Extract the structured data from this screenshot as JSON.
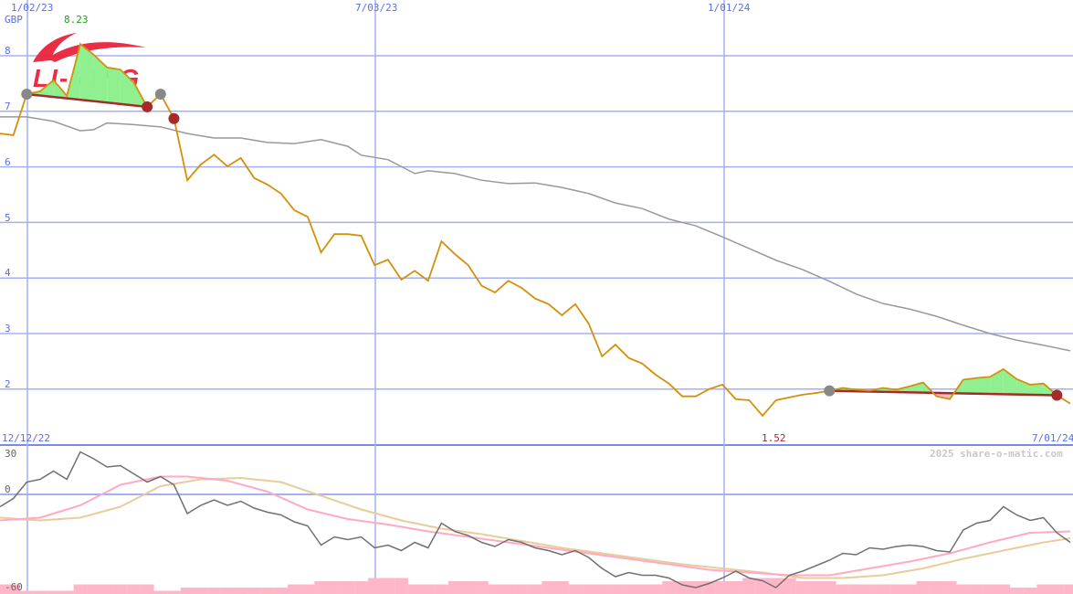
{
  "chart_data": [
    {
      "type": "line",
      "panel": "price",
      "unit_label": "GBP",
      "interval": "weekly",
      "x_tick_labels": [
        "1/02/23",
        "7/03/23",
        "1/01/24"
      ],
      "x_range_labels": [
        "12/12/22",
        "7/01/24"
      ],
      "y_ticks": [
        2,
        3,
        4,
        5,
        6,
        7,
        8
      ],
      "ylim": [
        1.52,
        8.23
      ],
      "max_label": "8.23",
      "min_label": "1.52",
      "grid": true,
      "series": [
        {
          "role": "price",
          "color": "#d4900a",
          "values": [
            6.6,
            6.57,
            7.31,
            7.36,
            7.56,
            7.28,
            8.21,
            8.02,
            7.79,
            7.75,
            7.52,
            7.08,
            7.31,
            6.87,
            5.76,
            6.04,
            6.22,
            6.01,
            6.16,
            5.8,
            5.68,
            5.52,
            5.22,
            5.1,
            4.46,
            4.79,
            4.79,
            4.76,
            4.23,
            4.33,
            3.97,
            4.13,
            3.95,
            4.66,
            4.43,
            4.23,
            3.86,
            3.74,
            3.95,
            3.82,
            3.63,
            3.53,
            3.33,
            3.53,
            3.18,
            2.59,
            2.8,
            2.56,
            2.46,
            2.26,
            2.1,
            1.87,
            1.87,
            2.0,
            2.08,
            1.82,
            1.8,
            1.52,
            1.8,
            1.85,
            1.9,
            1.93,
            1.97,
            2.02,
            1.99,
            1.97,
            2.02,
            1.99,
            2.05,
            2.12,
            1.87,
            1.82,
            2.17,
            2.2,
            2.22,
            2.36,
            2.18,
            2.08,
            2.1,
            1.89,
            1.74
          ]
        },
        {
          "role": "moving-average",
          "color": "#999999",
          "points": [
            [
              0,
              6.9
            ],
            [
              2,
              6.9
            ],
            [
              4,
              6.82
            ],
            [
              6,
              6.65
            ],
            [
              7,
              6.67
            ],
            [
              8,
              6.79
            ],
            [
              10,
              6.76
            ],
            [
              12,
              6.72
            ],
            [
              14,
              6.6
            ],
            [
              16,
              6.52
            ],
            [
              18,
              6.52
            ],
            [
              20,
              6.44
            ],
            [
              22,
              6.42
            ],
            [
              24,
              6.49
            ],
            [
              26,
              6.37
            ],
            [
              27,
              6.21
            ],
            [
              29,
              6.13
            ],
            [
              31,
              5.88
            ],
            [
              32,
              5.93
            ],
            [
              34,
              5.88
            ],
            [
              36,
              5.76
            ],
            [
              38,
              5.7
            ],
            [
              40,
              5.71
            ],
            [
              42,
              5.63
            ],
            [
              44,
              5.52
            ],
            [
              46,
              5.35
            ],
            [
              48,
              5.25
            ],
            [
              50,
              5.06
            ],
            [
              52,
              4.94
            ],
            [
              54,
              4.74
            ],
            [
              56,
              4.53
            ],
            [
              58,
              4.32
            ],
            [
              60,
              4.15
            ],
            [
              62,
              3.94
            ],
            [
              64,
              3.71
            ],
            [
              66,
              3.54
            ],
            [
              68,
              3.44
            ],
            [
              70,
              3.31
            ],
            [
              72,
              3.15
            ],
            [
              74,
              3.0
            ],
            [
              76,
              2.88
            ],
            [
              78,
              2.79
            ],
            [
              80,
              2.69
            ]
          ]
        }
      ],
      "trendlines": [
        {
          "from": [
            2,
            7.31
          ],
          "to": [
            11,
            7.08
          ],
          "color": "#a52a2a"
        },
        {
          "from": [
            62,
            1.97
          ],
          "to": [
            79,
            1.89
          ],
          "color": "#a52a2a"
        }
      ],
      "markers": [
        {
          "week": 2,
          "value": 7.31,
          "kind": "start",
          "color": "#888888"
        },
        {
          "week": 11,
          "value": 7.08,
          "kind": "end",
          "color": "#a52a2a"
        },
        {
          "week": 12,
          "value": 7.31,
          "kind": "start",
          "color": "#888888"
        },
        {
          "week": 13,
          "value": 6.87,
          "kind": "end",
          "color": "#a52a2a"
        },
        {
          "week": 62,
          "value": 1.97,
          "kind": "start",
          "color": "#888888"
        },
        {
          "week": 79,
          "value": 1.89,
          "kind": "end",
          "color": "#a52a2a"
        }
      ],
      "fill_colors": {
        "above": "#90f090",
        "below": "#ffb6c8"
      }
    },
    {
      "type": "line",
      "panel": "oscillator",
      "y_ticks": [
        30,
        0,
        -60
      ],
      "ylim": [
        -68,
        31
      ],
      "series": [
        {
          "role": "oscillator",
          "color": "#707070",
          "values": [
            -9,
            -3,
            9,
            11,
            17,
            11,
            31,
            26,
            20,
            21,
            15,
            9,
            13,
            7,
            -14,
            -8,
            -4,
            -8,
            -5,
            -10,
            -13,
            -15,
            -20,
            -23,
            -37,
            -31,
            -33,
            -31,
            -39,
            -37,
            -41,
            -35,
            -39,
            -21,
            -27,
            -30,
            -35,
            -38,
            -33,
            -35,
            -39,
            -41,
            -44,
            -41,
            -46,
            -54,
            -60,
            -57,
            -59,
            -59,
            -61,
            -66,
            -68,
            -65,
            -61,
            -56,
            -61,
            -63,
            -68,
            -59,
            -56,
            -52,
            -48,
            -43,
            -44,
            -39,
            -40,
            -38,
            -37,
            -38,
            -41,
            -42,
            -26,
            -21,
            -19,
            -9,
            -15,
            -19,
            -17,
            -28,
            -35
          ]
        },
        {
          "role": "signal-fast",
          "color": "#ffaac0",
          "points": [
            [
              0,
              -19
            ],
            [
              3,
              -17
            ],
            [
              6,
              -8
            ],
            [
              9,
              7
            ],
            [
              12,
              13
            ],
            [
              14,
              13
            ],
            [
              17,
              10
            ],
            [
              20,
              2
            ],
            [
              23,
              -11
            ],
            [
              26,
              -18
            ],
            [
              29,
              -22
            ],
            [
              32,
              -27
            ],
            [
              35,
              -31
            ],
            [
              38,
              -35
            ],
            [
              41,
              -39
            ],
            [
              44,
              -43
            ],
            [
              47,
              -47
            ],
            [
              50,
              -51
            ],
            [
              53,
              -55
            ],
            [
              56,
              -57
            ],
            [
              59,
              -59
            ],
            [
              62,
              -59
            ],
            [
              65,
              -54
            ],
            [
              68,
              -49
            ],
            [
              71,
              -43
            ],
            [
              74,
              -35
            ],
            [
              77,
              -28
            ],
            [
              80,
              -27
            ]
          ]
        },
        {
          "role": "signal-slow",
          "color": "#e8cc9c",
          "points": [
            [
              0,
              -17
            ],
            [
              3,
              -19
            ],
            [
              6,
              -17
            ],
            [
              9,
              -9
            ],
            [
              12,
              6
            ],
            [
              15,
              11
            ],
            [
              18,
              12
            ],
            [
              21,
              9
            ],
            [
              24,
              -1
            ],
            [
              27,
              -11
            ],
            [
              30,
              -19
            ],
            [
              33,
              -25
            ],
            [
              36,
              -29
            ],
            [
              39,
              -34
            ],
            [
              42,
              -39
            ],
            [
              45,
              -43
            ],
            [
              48,
              -47
            ],
            [
              51,
              -51
            ],
            [
              54,
              -54
            ],
            [
              57,
              -57
            ],
            [
              60,
              -61
            ],
            [
              63,
              -61
            ],
            [
              66,
              -59
            ],
            [
              69,
              -54
            ],
            [
              72,
              -47
            ],
            [
              75,
              -41
            ],
            [
              78,
              -35
            ],
            [
              80,
              -32
            ]
          ]
        }
      ],
      "volume_relative": [
        3,
        3,
        1,
        1,
        1,
        1,
        3,
        3,
        3,
        3,
        3,
        3,
        1,
        1,
        2,
        2,
        2,
        2,
        2,
        2,
        2,
        2,
        3,
        3,
        4,
        4,
        4,
        4,
        5,
        5,
        5,
        3,
        3,
        3,
        4,
        4,
        4,
        3,
        3,
        3,
        3,
        4,
        4,
        3,
        3,
        3,
        3,
        3,
        3,
        3,
        4,
        4,
        4,
        4,
        4,
        4,
        5,
        5,
        5,
        5,
        4,
        4,
        4,
        3,
        3,
        3,
        3,
        3,
        3,
        4,
        4,
        4,
        3,
        3,
        3,
        3,
        2,
        2,
        3,
        3,
        3
      ],
      "volume_color": "#ffb6c8"
    }
  ],
  "labels": {
    "date_1": "1/02/23",
    "date_2": "7/03/23",
    "date_3": "1/01/24",
    "unit": "GBP",
    "max": "8.23",
    "min": "1.52",
    "range_start": "12/12/22",
    "range_end": "7/01/24",
    "copyright": "2025 share-o-matic.com",
    "y": [
      "8",
      "7",
      "6",
      "5",
      "4",
      "3",
      "2"
    ],
    "osc": [
      "30",
      "0",
      "-60"
    ]
  },
  "logo": {
    "text": "LI-NING",
    "color": "#e8243c"
  }
}
